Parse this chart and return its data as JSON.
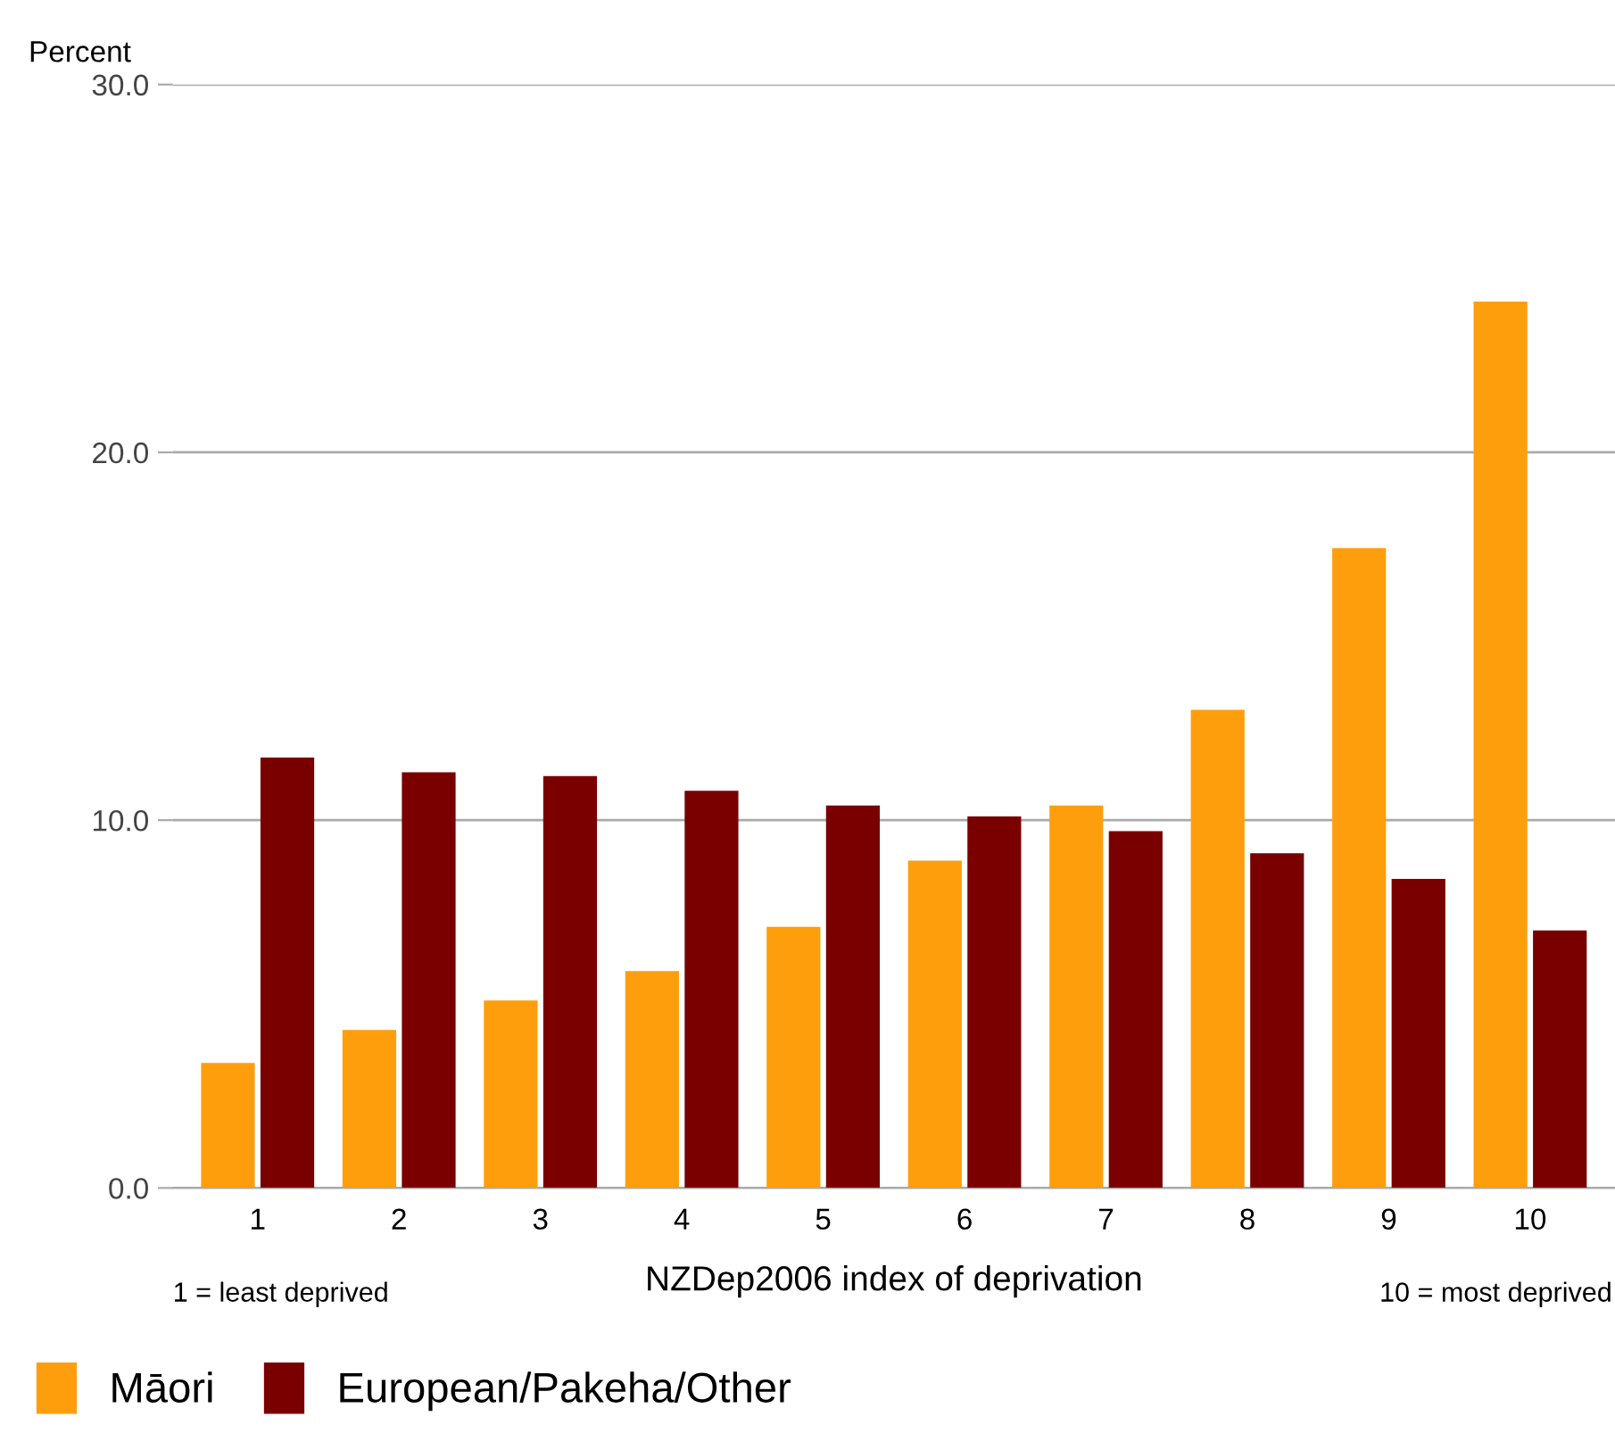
{
  "chart_data": {
    "type": "bar",
    "ylabel": "Percent",
    "xlabel": "NZDep2006 index of deprivation",
    "categories": [
      "1",
      "2",
      "3",
      "4",
      "5",
      "6",
      "7",
      "8",
      "9",
      "10"
    ],
    "series": [
      {
        "name": "Māori",
        "color": "#ff9e0d",
        "values": [
          3.4,
          4.3,
          5.1,
          5.9,
          7.1,
          8.9,
          10.4,
          13.0,
          17.4,
          24.1
        ]
      },
      {
        "name": "European/Pakeha/Other",
        "color": "#7a0000",
        "values": [
          11.7,
          11.3,
          11.2,
          10.8,
          10.4,
          10.1,
          9.7,
          9.1,
          8.4,
          7.0
        ]
      }
    ],
    "ylim": [
      0,
      30
    ],
    "yticks": [
      {
        "value": 0,
        "label": "0.0"
      },
      {
        "value": 10,
        "label": "10.0"
      },
      {
        "value": 20,
        "label": "20.0"
      },
      {
        "value": 30,
        "label": "30.0"
      }
    ],
    "grid": "y",
    "legend": "bottom left",
    "annotations": [
      "1 = least deprived",
      "10 = most deprived"
    ]
  }
}
